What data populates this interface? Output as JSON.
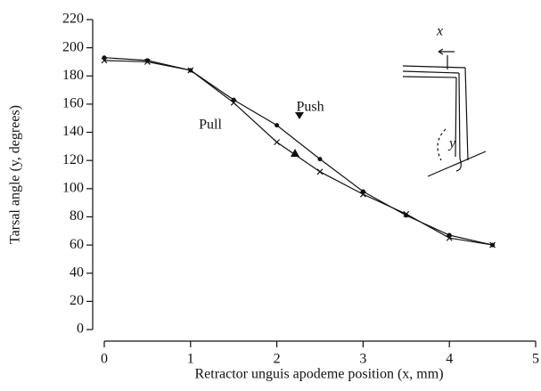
{
  "chart_data": {
    "type": "line",
    "x_label": "Retractor unguis apodeme position (x, mm)",
    "y_label": "Tarsal angle (y, degrees)",
    "x": [
      0,
      0.5,
      1,
      1.5,
      2,
      2.5,
      3,
      3.5,
      4,
      4.5
    ],
    "series": [
      {
        "name": "Push",
        "color": "#111111",
        "marker": "dot",
        "values": [
          193,
          191,
          184,
          163,
          145,
          121,
          98,
          81,
          67,
          60
        ]
      },
      {
        "name": "Pull",
        "color": "#111111",
        "marker": "cross",
        "values": [
          191,
          190,
          184,
          161,
          133,
          112,
          96,
          82,
          65,
          60
        ]
      }
    ],
    "inset_labels": [
      "x",
      "y"
    ],
    "xlim": [
      0,
      5
    ],
    "xticks": [
      0,
      1,
      2,
      3,
      4,
      5
    ],
    "ylim": [
      0,
      220
    ],
    "yticks": [
      0,
      20,
      40,
      60,
      80,
      100,
      120,
      140,
      160,
      180,
      200,
      220
    ],
    "grid": false
  }
}
